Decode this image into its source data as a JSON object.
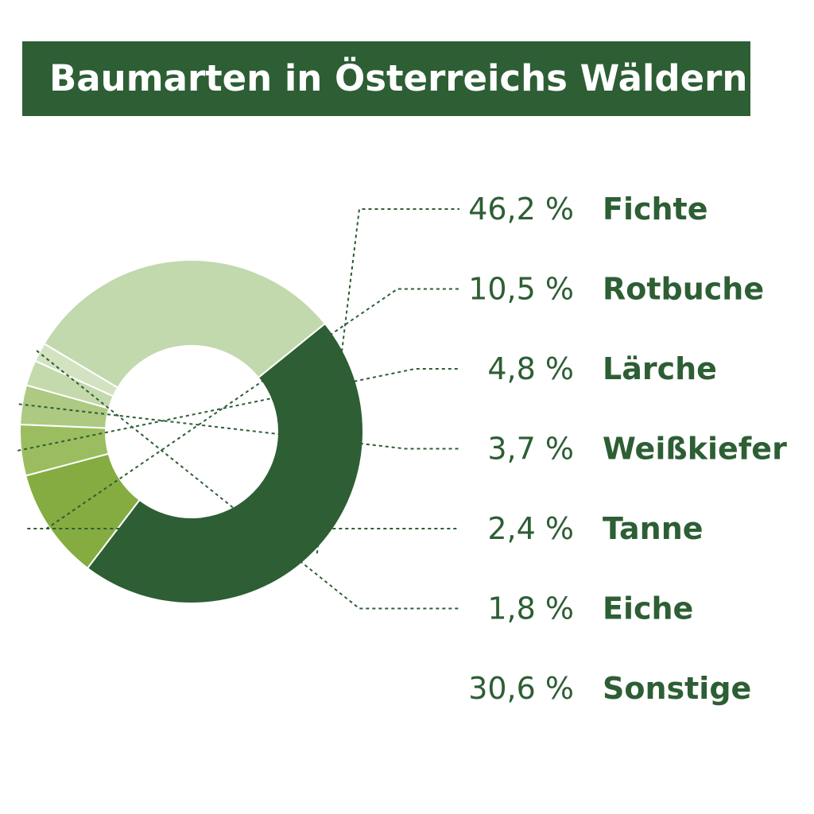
{
  "chart_data": {
    "type": "pie",
    "title": "Baumarten in Österreichs Wäldern",
    "unit": "%",
    "slices": [
      {
        "name": "Fichte",
        "value": 46.2,
        "label": "46,2 %",
        "color": "#2d5e34"
      },
      {
        "name": "Rotbuche",
        "value": 10.5,
        "label": "10,5 %",
        "color": "#84ac40"
      },
      {
        "name": "Lärche",
        "value": 4.8,
        "label": "4,8 %",
        "color": "#9bbd5f"
      },
      {
        "name": "Weißkiefer",
        "value": 3.7,
        "label": "3,7 %",
        "color": "#adc982"
      },
      {
        "name": "Tanne",
        "value": 2.4,
        "label": "2,4 %",
        "color": "#c4d9ac"
      },
      {
        "name": "Eiche",
        "value": 1.8,
        "label": "1,8 %",
        "color": "#d3e3c1"
      },
      {
        "name": "Sonstige",
        "value": 30.6,
        "label": "30,6 %",
        "color": "#c2d8ad"
      }
    ]
  }
}
